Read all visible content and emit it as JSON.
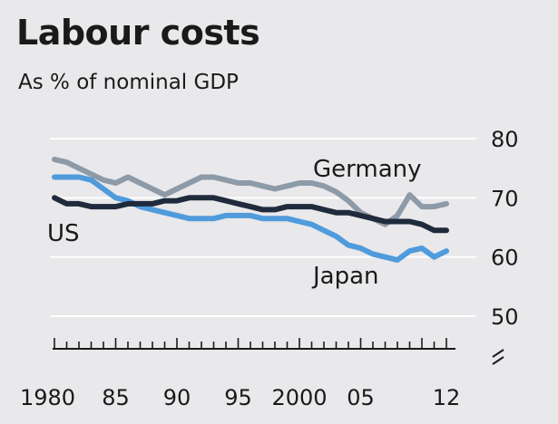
{
  "header": {
    "title": "Labour costs",
    "subtitle": "As % of nominal GDP"
  },
  "chart_data": {
    "type": "line",
    "title": "Labour costs",
    "subtitle": "As % of nominal GDP",
    "xlabel": "",
    "ylabel": "",
    "x_range": [
      1980,
      2012
    ],
    "ylim": [
      50,
      80
    ],
    "y_ticks": [
      50,
      60,
      70,
      80
    ],
    "x_tick_labels": [
      "1980",
      "85",
      "90",
      "95",
      "2000",
      "05",
      "12"
    ],
    "x_tick_values": [
      1980,
      1985,
      1990,
      1995,
      2000,
      2005,
      2012
    ],
    "axis_break": true,
    "grid": "horizontal",
    "colors": {
      "Germany": "#8d9aa7",
      "US": "#1f2a3c",
      "Japan": "#4f9bdc"
    },
    "series": [
      {
        "name": "Germany",
        "x": [
          1980,
          1981,
          1982,
          1983,
          1984,
          1985,
          1986,
          1987,
          1988,
          1989,
          1990,
          1991,
          1992,
          1993,
          1994,
          1995,
          1996,
          1997,
          1998,
          1999,
          2000,
          2001,
          2002,
          2003,
          2004,
          2005,
          2006,
          2007,
          2008,
          2009,
          2010,
          2011,
          2012
        ],
        "values": [
          76.5,
          76,
          75,
          74,
          73,
          72.5,
          73.5,
          72.5,
          71.5,
          70.5,
          71.5,
          72.5,
          73.5,
          73.5,
          73,
          72.5,
          72.5,
          72,
          71.5,
          72,
          72.5,
          72.5,
          72,
          71,
          69.5,
          67.5,
          66.5,
          65.5,
          67,
          70.5,
          68.5,
          68.5,
          69
        ]
      },
      {
        "name": "US",
        "x": [
          1980,
          1981,
          1982,
          1983,
          1984,
          1985,
          1986,
          1987,
          1988,
          1989,
          1990,
          1991,
          1992,
          1993,
          1994,
          1995,
          1996,
          1997,
          1998,
          1999,
          2000,
          2001,
          2002,
          2003,
          2004,
          2005,
          2006,
          2007,
          2008,
          2009,
          2010,
          2011,
          2012
        ],
        "values": [
          70,
          69,
          69,
          68.5,
          68.5,
          68.5,
          69,
          69,
          69,
          69.5,
          69.5,
          70,
          70,
          70,
          69.5,
          69,
          68.5,
          68,
          68,
          68.5,
          68.5,
          68.5,
          68,
          67.5,
          67.5,
          67,
          66.5,
          66,
          66,
          66,
          65.5,
          64.5,
          64.5
        ]
      },
      {
        "name": "Japan",
        "x": [
          1980,
          1981,
          1982,
          1983,
          1984,
          1985,
          1986,
          1987,
          1988,
          1989,
          1990,
          1991,
          1992,
          1993,
          1994,
          1995,
          1996,
          1997,
          1998,
          1999,
          2000,
          2001,
          2002,
          2003,
          2004,
          2005,
          2006,
          2007,
          2008,
          2009,
          2010,
          2011,
          2012
        ],
        "values": [
          73.5,
          73.5,
          73.5,
          73,
          71.5,
          70,
          69.5,
          68.5,
          68,
          67.5,
          67,
          66.5,
          66.5,
          66.5,
          67,
          67,
          67,
          66.5,
          66.5,
          66.5,
          66,
          65.5,
          64.5,
          63.5,
          62,
          61.5,
          60.5,
          60,
          59.5,
          61,
          61.5,
          60,
          61
        ]
      }
    ],
    "series_labels": [
      {
        "name": "Germany",
        "text": "Germany"
      },
      {
        "name": "US",
        "text": "US"
      },
      {
        "name": "Japan",
        "text": "Japan"
      }
    ]
  }
}
